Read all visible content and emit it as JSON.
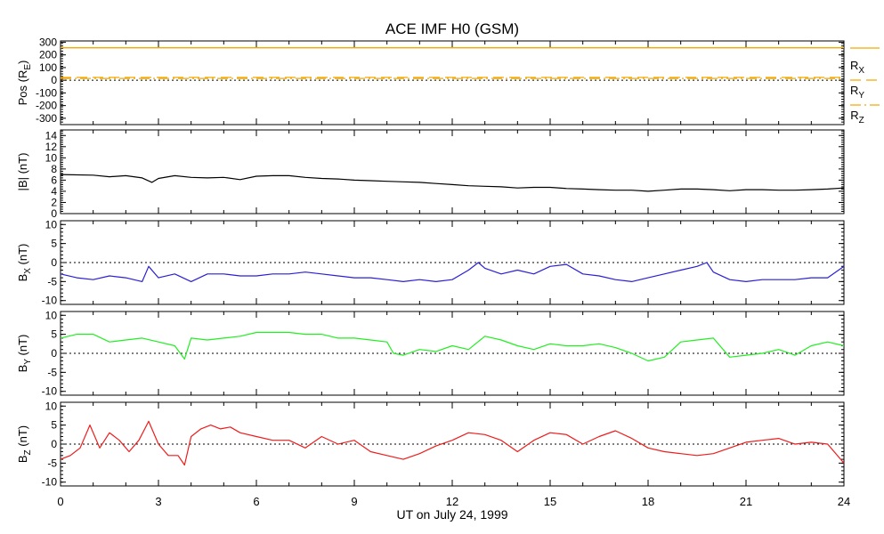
{
  "title": "ACE IMF H0 (GSM)",
  "x_axis": {
    "label": "UT on July 24, 1999",
    "ticks": [
      "0",
      "3",
      "6",
      "9",
      "12",
      "15",
      "18",
      "21",
      "24"
    ]
  },
  "position_legend": [
    "R",
    "R",
    "R"
  ],
  "position_legend_sub": [
    "X",
    "Y",
    "Z"
  ],
  "colors": {
    "black": "#000000",
    "blue": "#2a1fd6",
    "green": "#22ee22",
    "red": "#ee1c1c",
    "orange": "#f2a900"
  },
  "chart_data": [
    {
      "type": "line",
      "name": "position",
      "ylabel": "Pos (R",
      "ylabel_sub": "E",
      "ylabel_tail": ")",
      "ylim": [
        -350,
        310
      ],
      "yticks": [
        "300",
        "200",
        "100",
        "0",
        "-100",
        "-200",
        "-300"
      ],
      "x": [
        0,
        24
      ],
      "series": [
        {
          "name": "R",
          "sub": "X",
          "values": [
            256,
            256
          ],
          "style": "solid"
        },
        {
          "name": "R",
          "sub": "Y",
          "values": [
            22,
            22
          ],
          "style": "dashed"
        },
        {
          "name": "R",
          "sub": "Z",
          "values": [
            14,
            14
          ],
          "style": "dashdot"
        }
      ]
    },
    {
      "type": "line",
      "name": "bmag",
      "ylabel": "|B| (nT)",
      "ylim": [
        0,
        15
      ],
      "yticks": [
        "14",
        "12",
        "10",
        "8",
        "6",
        "4",
        "2",
        "0"
      ],
      "x": [
        0,
        1,
        1.5,
        2,
        2.5,
        2.8,
        3,
        3.5,
        4,
        4.5,
        5,
        5.5,
        6,
        6.5,
        7,
        7.5,
        8,
        8.5,
        9,
        9.5,
        10,
        10.5,
        11,
        11.5,
        12,
        12.5,
        13,
        13.5,
        14,
        14.5,
        15,
        15.5,
        16,
        16.5,
        17,
        17.5,
        18,
        18.5,
        19,
        19.5,
        20,
        20.5,
        21,
        21.5,
        22,
        22.5,
        23,
        23.5,
        24
      ],
      "values": [
        7.0,
        6.9,
        6.6,
        6.8,
        6.4,
        5.6,
        6.3,
        6.8,
        6.5,
        6.4,
        6.5,
        6.1,
        6.7,
        6.8,
        6.8,
        6.5,
        6.3,
        6.2,
        6.0,
        5.9,
        5.8,
        5.7,
        5.6,
        5.4,
        5.2,
        5.0,
        4.9,
        4.8,
        4.6,
        4.7,
        4.7,
        4.5,
        4.4,
        4.3,
        4.2,
        4.2,
        4.0,
        4.2,
        4.4,
        4.4,
        4.3,
        4.1,
        4.3,
        4.3,
        4.2,
        4.2,
        4.3,
        4.4,
        4.6
      ]
    },
    {
      "type": "line",
      "name": "bx",
      "ylabel": "B",
      "ylabel_sub": "X",
      "ylabel_tail": " (nT)",
      "ylim": [
        -11,
        11
      ],
      "yticks": [
        "10",
        "5",
        "0",
        "-5",
        "-10"
      ],
      "x": [
        0,
        0.5,
        1,
        1.5,
        2,
        2.5,
        2.7,
        3,
        3.5,
        4,
        4.5,
        5,
        5.5,
        6,
        6.5,
        7,
        7.5,
        8,
        8.5,
        9,
        9.5,
        10,
        10.5,
        11,
        11.5,
        12,
        12.5,
        12.8,
        13,
        13.5,
        14,
        14.5,
        15,
        15.5,
        16,
        16.5,
        17,
        17.5,
        18,
        18.5,
        19,
        19.5,
        19.8,
        20,
        20.5,
        21,
        21.5,
        22,
        22.5,
        23,
        23.5,
        24
      ],
      "values": [
        -3,
        -4,
        -4.5,
        -3.5,
        -4,
        -5,
        -1,
        -4,
        -3,
        -5,
        -3,
        -3,
        -3.5,
        -3.5,
        -3,
        -3,
        -2.5,
        -3,
        -3.5,
        -4,
        -4,
        -4.5,
        -5,
        -4.5,
        -5,
        -4.5,
        -2,
        0,
        -1.5,
        -3,
        -2,
        -3,
        -1,
        -0.5,
        -3,
        -3.5,
        -4.5,
        -5,
        -4,
        -3,
        -2,
        -1,
        0,
        -2.5,
        -4.5,
        -5,
        -4.5,
        -4.5,
        -4.5,
        -4,
        -4,
        -1
      ]
    },
    {
      "type": "line",
      "name": "by",
      "ylabel": "B",
      "ylabel_sub": "Y",
      "ylabel_tail": " (nT)",
      "ylim": [
        -11,
        11
      ],
      "yticks": [
        "10",
        "5",
        "0",
        "-5",
        "-10"
      ],
      "x": [
        0,
        0.5,
        1,
        1.5,
        2,
        2.5,
        3,
        3.5,
        3.8,
        4,
        4.5,
        5,
        5.5,
        6,
        6.5,
        7,
        7.5,
        8,
        8.5,
        9,
        9.5,
        10,
        10.2,
        10.5,
        11,
        11.5,
        12,
        12.5,
        13,
        13.5,
        14,
        14.5,
        15,
        15.5,
        16,
        16.5,
        17,
        17.5,
        18,
        18.5,
        19,
        19.5,
        20,
        20.5,
        21,
        21.5,
        22,
        22.5,
        23,
        23.5,
        24
      ],
      "values": [
        4,
        5,
        5,
        3,
        3.5,
        4,
        3,
        2,
        -1.5,
        4,
        3.5,
        4,
        4.5,
        5.5,
        5.5,
        5.5,
        5,
        5,
        4,
        4,
        3.5,
        3,
        0,
        -0.5,
        1,
        0.5,
        2,
        1,
        4.5,
        3.5,
        2,
        1,
        2.5,
        2,
        2,
        2.5,
        1.5,
        0,
        -2,
        -1,
        3,
        3.5,
        4,
        -1,
        -0.5,
        0,
        1,
        -0.5,
        2,
        3,
        2
      ]
    },
    {
      "type": "line",
      "name": "bz",
      "ylabel": "B",
      "ylabel_sub": "Z",
      "ylabel_tail": " (nT)",
      "ylim": [
        -11,
        11
      ],
      "yticks": [
        "10",
        "5",
        "0",
        "-5",
        "-10"
      ],
      "x": [
        0,
        0.3,
        0.6,
        0.9,
        1.2,
        1.5,
        1.8,
        2.1,
        2.4,
        2.7,
        3,
        3.3,
        3.6,
        3.8,
        4,
        4.3,
        4.6,
        4.9,
        5.2,
        5.5,
        6,
        6.5,
        7,
        7.5,
        8,
        8.5,
        9,
        9.5,
        10,
        10.5,
        11,
        11.5,
        12,
        12.5,
        13,
        13.5,
        14,
        14.5,
        15,
        15.5,
        16,
        16.5,
        17,
        17.5,
        18,
        18.5,
        19,
        19.5,
        20,
        20.5,
        21,
        21.5,
        22,
        22.5,
        23,
        23.5,
        24
      ],
      "values": [
        -4,
        -3,
        -1,
        5,
        -1,
        3,
        1,
        -2,
        1,
        6,
        0,
        -3,
        -3,
        -5.5,
        2,
        4,
        5,
        4,
        4.5,
        3,
        2,
        1,
        1,
        -1,
        2,
        0,
        1,
        -2,
        -3,
        -4,
        -2.5,
        -0.5,
        1,
        3,
        2.5,
        1,
        -2,
        1,
        3,
        2.5,
        0,
        2,
        3.5,
        1.5,
        -1,
        -2,
        -2.5,
        -3,
        -2.5,
        -1,
        0.5,
        1,
        1.5,
        0,
        0.5,
        0,
        -5
      ]
    }
  ]
}
